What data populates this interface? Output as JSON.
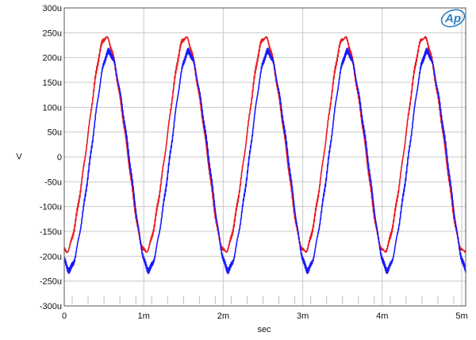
{
  "chart_data": {
    "type": "line",
    "xlabel": "sec",
    "ylabel": "V",
    "xlim": [
      0,
      0.00505
    ],
    "ylim": [
      -0.0003,
      0.0003
    ],
    "grid": true,
    "x_ticks": [
      0,
      0.001,
      0.002,
      0.003,
      0.004,
      0.005
    ],
    "x_tick_labels": [
      "0",
      "1m",
      "2m",
      "3m",
      "4m",
      "5m"
    ],
    "y_ticks": [
      0.0003,
      0.00025,
      0.0002,
      0.00015,
      0.0001,
      5e-05,
      0,
      -5e-05,
      -0.0001,
      -0.00015,
      -0.0002,
      -0.00025,
      -0.0003
    ],
    "y_tick_labels": [
      "300u",
      "250u",
      "200u",
      "150u",
      "100u",
      "50u",
      "0",
      "-50u",
      "-100u",
      "-150u",
      "-200u",
      "-250u",
      "-300u"
    ],
    "series": [
      {
        "color": "#e8191f",
        "frequency_hz": 1000,
        "amplitude_v": 0.00021,
        "offset_v": 2.5e-05,
        "peak_time_s": 0.00053
      },
      {
        "color": "#1a1aff",
        "frequency_hz": 1000,
        "amplitude_v": 0.000213,
        "offset_v": -8e-06,
        "peak_time_s": 0.00057
      }
    ],
    "colors": {
      "grid": "#c9c9c9",
      "frame": "#555555",
      "logo": "#2f7fc1"
    },
    "logo_text": "Ap"
  }
}
